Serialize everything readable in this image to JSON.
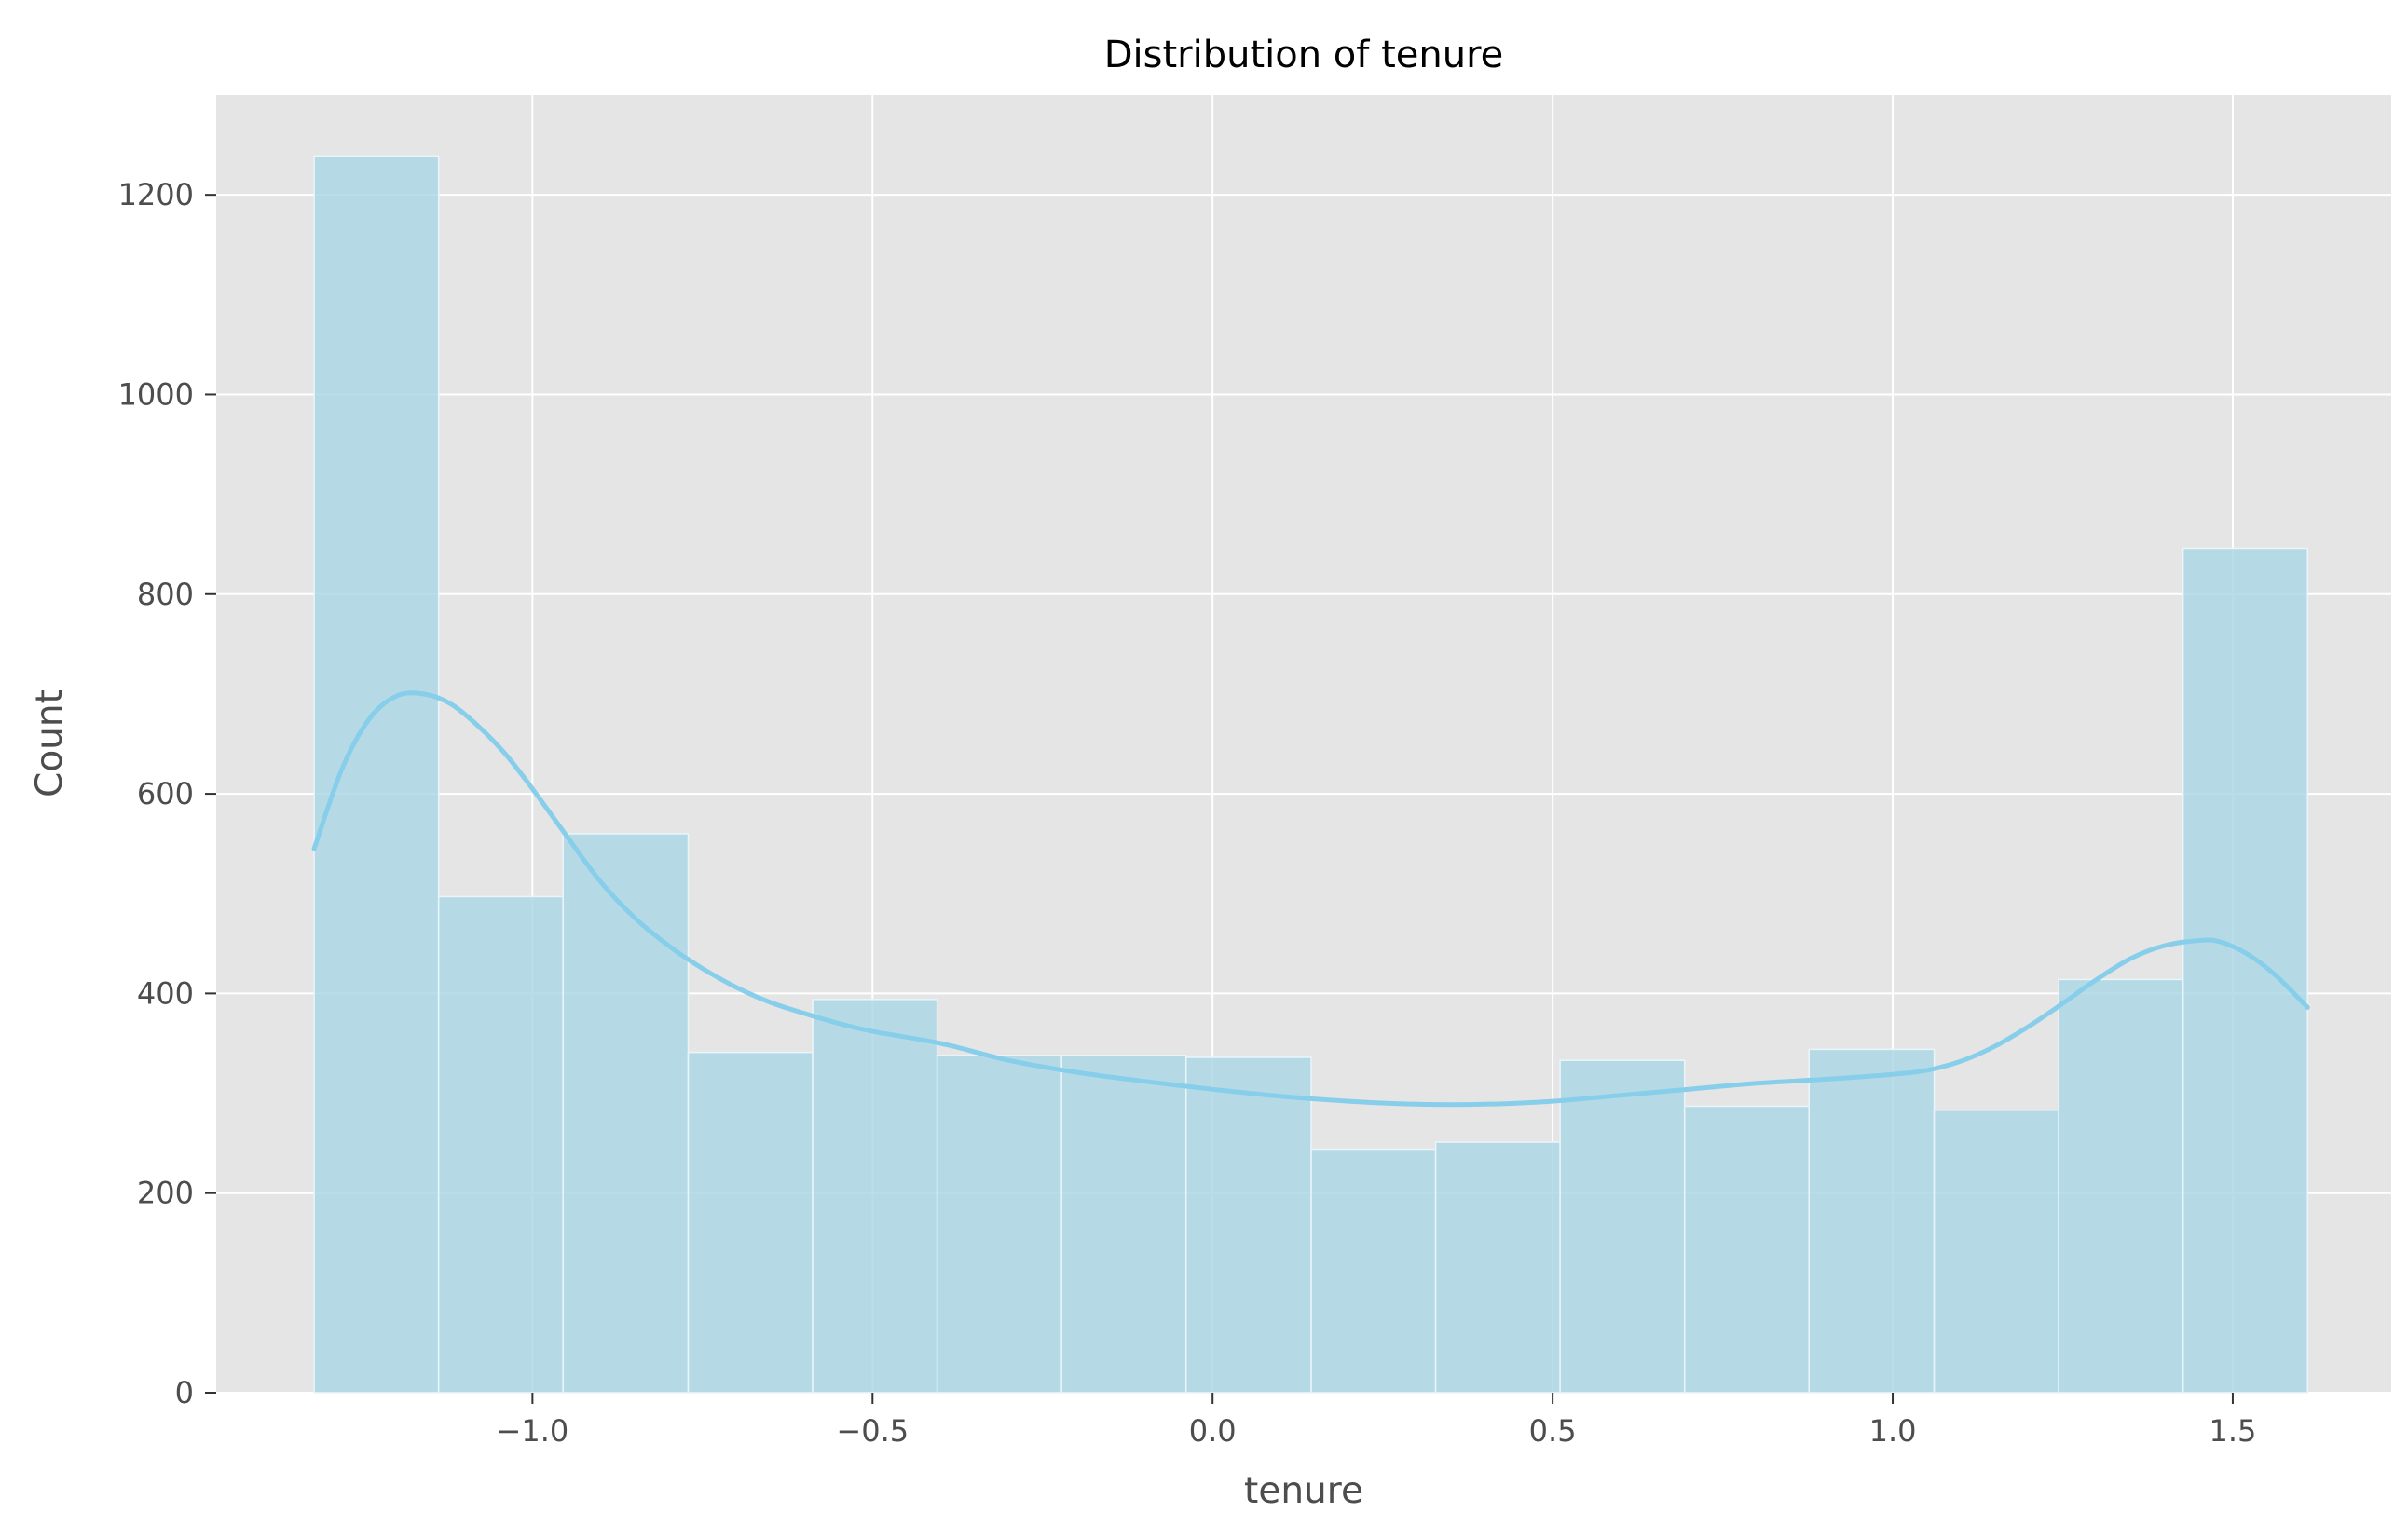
{
  "chart_data": {
    "type": "bar",
    "subtype": "histogram-with-kde",
    "title": "Distribution of tenure",
    "xlabel": "tenure",
    "ylabel": "Count",
    "xlim": [
      -1.465,
      1.733
    ],
    "ylim": [
      0,
      1300
    ],
    "grid": true,
    "legend": "none",
    "x_ticks": [
      -1.0,
      -0.5,
      0.0,
      0.5,
      1.0,
      1.5
    ],
    "x_tick_labels": [
      "−1.0",
      "−0.5",
      "0.0",
      "0.5",
      "1.0",
      "1.5"
    ],
    "y_ticks": [
      0,
      200,
      400,
      600,
      800,
      1000,
      1200
    ],
    "y_tick_labels": [
      "0",
      "200",
      "400",
      "600",
      "800",
      "1000",
      "1200"
    ],
    "bin_edges": [
      -1.321,
      -1.138,
      -0.955,
      -0.771,
      -0.588,
      -0.405,
      -0.222,
      -0.039,
      0.145,
      0.328,
      0.511,
      0.694,
      0.877,
      1.061,
      1.244,
      1.427,
      1.61
    ],
    "counts": [
      1239,
      497,
      560,
      341,
      394,
      338,
      338,
      336,
      244,
      251,
      333,
      287,
      344,
      283,
      414,
      846
    ],
    "kde": {
      "x": [
        -1.321,
        -1.28,
        -1.24,
        -1.2,
        -1.16,
        -1.12,
        -1.08,
        -1.04,
        -1.0,
        -0.95,
        -0.9,
        -0.85,
        -0.8,
        -0.75,
        -0.7,
        -0.65,
        -0.6,
        -0.55,
        -0.5,
        -0.4,
        -0.3,
        -0.2,
        -0.1,
        0.0,
        0.1,
        0.2,
        0.3,
        0.4,
        0.5,
        0.6,
        0.7,
        0.8,
        0.9,
        1.0,
        1.05,
        1.1,
        1.15,
        1.2,
        1.25,
        1.3,
        1.35,
        1.4,
        1.45,
        1.48,
        1.52,
        1.56,
        1.6,
        1.61
      ],
      "y": [
        545,
        625,
        675,
        698,
        700,
        690,
        668,
        640,
        605,
        558,
        512,
        476,
        448,
        425,
        406,
        391,
        380,
        370,
        362,
        350,
        333,
        321,
        312,
        304,
        297,
        292,
        289,
        289,
        292,
        298,
        304,
        310,
        314,
        319,
        323,
        332,
        347,
        367,
        390,
        414,
        435,
        448,
        453,
        452,
        440,
        420,
        393,
        386
      ]
    },
    "colors": {
      "bar_fill": "#add8e6",
      "bar_edge": "#eaf5fa",
      "kde_line": "#87ceeb",
      "plot_background": "#e5e5e5",
      "grid": "#ffffff",
      "axis_text": "#4d4d4d",
      "title_text": "#000000"
    }
  }
}
